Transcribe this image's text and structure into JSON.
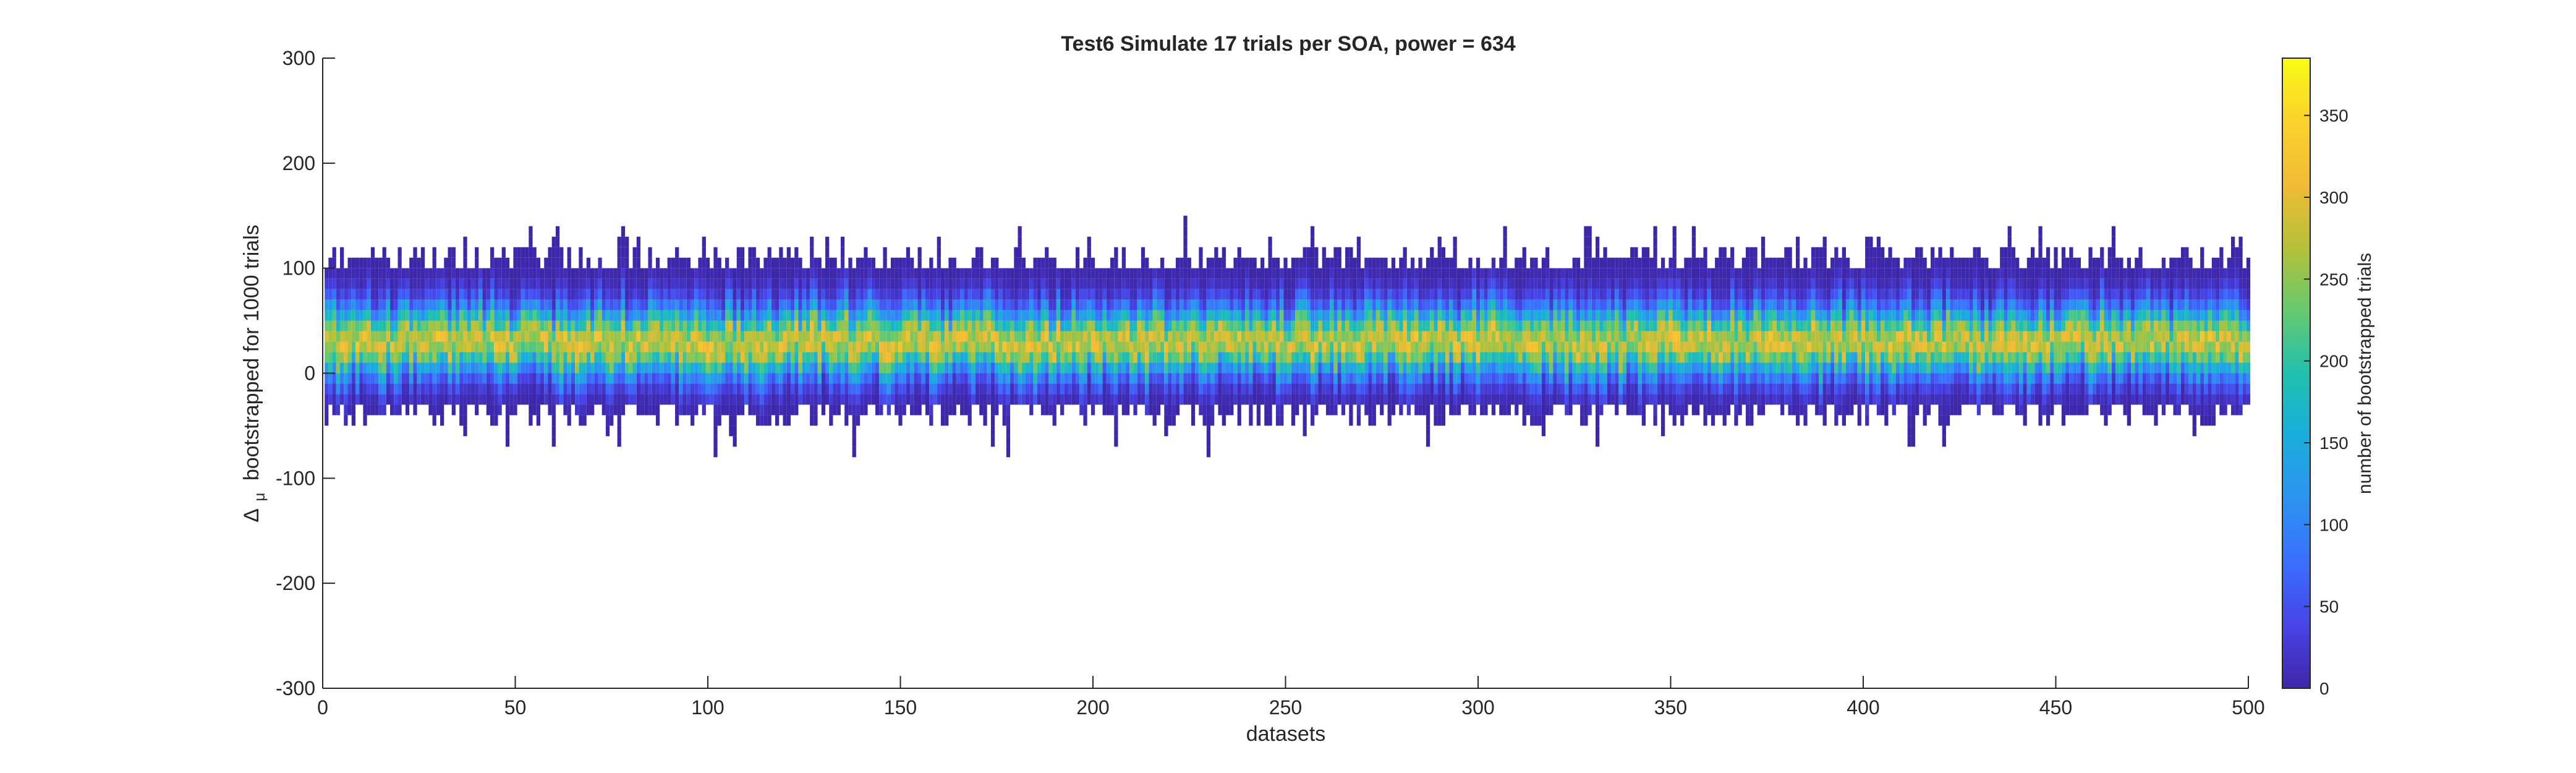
{
  "chart_data": {
    "type": "heatmap",
    "title": "Test6 Simulate 17 trials per SOA, power = 634",
    "xlabel": "datasets",
    "ylabel": {
      "symbol": "Δ",
      "subscript": "μ",
      "text": "bootstrapped for 1000 trials"
    },
    "xlim": [
      0,
      500
    ],
    "ylim": [
      -300,
      300
    ],
    "xticks": [
      0,
      50,
      100,
      150,
      200,
      250,
      300,
      350,
      400,
      450,
      500
    ],
    "yticks": [
      300,
      200,
      100,
      0,
      -100,
      -200,
      -300
    ],
    "num_datasets": 500,
    "bin_width": 10,
    "typical_range": [
      -20,
      90
    ],
    "center_value": 30,
    "colorbar": {
      "label": "number of bootstrapped trials",
      "range": [
        0,
        385
      ],
      "ticks": [
        0,
        50,
        100,
        150,
        200,
        250,
        300,
        350
      ],
      "colormap": "parula",
      "stops": [
        "#3e26a8",
        "#4744e8",
        "#3a6ffd",
        "#2c93f0",
        "#1aaddd",
        "#21c0ae",
        "#67c96e",
        "#b5c139",
        "#f2bb35",
        "#fbd22b",
        "#f9fb15"
      ]
    },
    "grid": false,
    "legend": "none"
  }
}
